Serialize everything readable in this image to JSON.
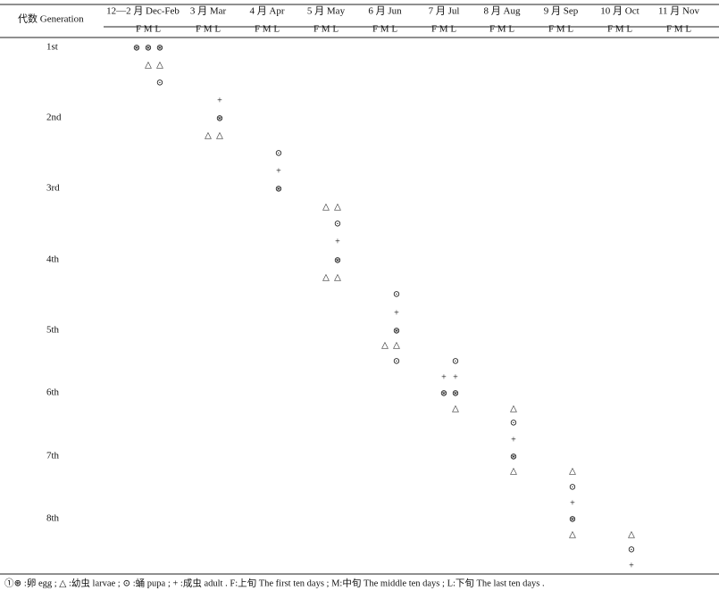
{
  "header": {
    "generation": "代数 Generation",
    "months": [
      {
        "name": "12—2 月 Dec-Feb",
        "periods": "F M L"
      },
      {
        "name": "3 月 Mar",
        "periods": "F M L"
      },
      {
        "name": "4 月 Apr",
        "periods": "F M L"
      },
      {
        "name": "5 月 May",
        "periods": "F M L"
      },
      {
        "name": "6 月 Jun",
        "periods": "F M L"
      },
      {
        "name": "7 月 Jul",
        "periods": "F M L"
      },
      {
        "name": "8 月 Aug",
        "periods": "F M L"
      },
      {
        "name": "9 月 Sep",
        "periods": "F M L"
      },
      {
        "name": "10 月 Oct",
        "periods": "F M L"
      },
      {
        "name": "11 月 Nov",
        "periods": "F M L"
      }
    ]
  },
  "rows": [
    {
      "marks": [
        {
          "col": 0,
          "symbol": "⊛"
        },
        {
          "col": 1,
          "symbol": "⊛"
        },
        {
          "col": 2,
          "symbol": "⊛"
        }
      ],
      "generation": "1st"
    },
    {
      "marks": [
        {
          "col": 1,
          "symbol": "△"
        },
        {
          "col": 2,
          "symbol": "△"
        }
      ]
    },
    {
      "marks": [
        {
          "col": 2,
          "symbol": "⊙"
        }
      ]
    },
    {
      "marks": [
        {
          "col": 5,
          "symbol": "+"
        }
      ]
    },
    {
      "marks": [
        {
          "col": 5,
          "symbol": "⊛"
        }
      ],
      "generation": "2nd"
    },
    {
      "marks": [
        {
          "col": 4,
          "symbol": "△"
        },
        {
          "col": 5,
          "symbol": "△"
        }
      ]
    },
    {
      "marks": [
        {
          "col": 8,
          "symbol": "⊙"
        }
      ]
    },
    {
      "marks": [
        {
          "col": 8,
          "symbol": "+"
        }
      ]
    },
    {
      "marks": [
        {
          "col": 8,
          "symbol": "⊛"
        }
      ],
      "generation": "3rd"
    },
    {
      "marks": [
        {
          "col": 10,
          "symbol": "△"
        },
        {
          "col": 11,
          "symbol": "△"
        }
      ]
    },
    {
      "marks": [
        {
          "col": 11,
          "symbol": "⊙"
        }
      ]
    },
    {
      "marks": [
        {
          "col": 11,
          "symbol": "+"
        }
      ]
    },
    {
      "marks": [
        {
          "col": 11,
          "symbol": "⊛"
        }
      ],
      "generation": "4th"
    },
    {
      "marks": [
        {
          "col": 10,
          "symbol": "△"
        },
        {
          "col": 11,
          "symbol": "△"
        }
      ]
    },
    {
      "marks": [
        {
          "col": 14,
          "symbol": "⊙"
        }
      ]
    },
    {
      "marks": [
        {
          "col": 14,
          "symbol": "+"
        }
      ]
    },
    {
      "marks": [
        {
          "col": 14,
          "symbol": "⊛"
        }
      ],
      "generation": "5th"
    },
    {
      "marks": [
        {
          "col": 13,
          "symbol": "△"
        },
        {
          "col": 14,
          "symbol": "△"
        }
      ]
    },
    {
      "marks": [
        {
          "col": 14,
          "symbol": "⊙"
        },
        {
          "col": 17,
          "symbol": "⊙"
        }
      ]
    },
    {
      "marks": [
        {
          "col": 16,
          "symbol": "+"
        },
        {
          "col": 17,
          "symbol": "+"
        }
      ]
    },
    {
      "marks": [
        {
          "col": 16,
          "symbol": "⊛"
        },
        {
          "col": 17,
          "symbol": "⊛"
        }
      ],
      "generation": "6th"
    },
    {
      "marks": [
        {
          "col": 17,
          "symbol": "△"
        },
        {
          "col": 20,
          "symbol": "△"
        }
      ]
    },
    {
      "marks": [
        {
          "col": 20,
          "symbol": "⊙"
        }
      ]
    },
    {
      "marks": [
        {
          "col": 20,
          "symbol": "+"
        }
      ]
    },
    {
      "marks": [
        {
          "col": 20,
          "symbol": "⊛"
        }
      ],
      "generation": "7th"
    },
    {
      "marks": [
        {
          "col": 20,
          "symbol": "△"
        },
        {
          "col": 23,
          "symbol": "△"
        }
      ]
    },
    {
      "marks": [
        {
          "col": 23,
          "symbol": "⊙"
        }
      ]
    },
    {
      "marks": [
        {
          "col": 23,
          "symbol": "+"
        }
      ]
    },
    {
      "marks": [
        {
          "col": 23,
          "symbol": "⊛"
        }
      ],
      "generation": "8th"
    },
    {
      "marks": [
        {
          "col": 23,
          "symbol": "△"
        },
        {
          "col": 26,
          "symbol": "△"
        }
      ]
    },
    {
      "marks": [
        {
          "col": 26,
          "symbol": "⊙"
        }
      ]
    },
    {
      "marks": [
        {
          "col": 26,
          "symbol": "+"
        }
      ]
    }
  ],
  "footnote": "①⊛ :卵 egg ; △ :幼虫 larvae ; ⊙ :蛹 pupa ;  + :成虫 adult . F:上旬 The first ten days ; M:中旬 The middle ten days ; L:下旬 The last ten days ."
}
